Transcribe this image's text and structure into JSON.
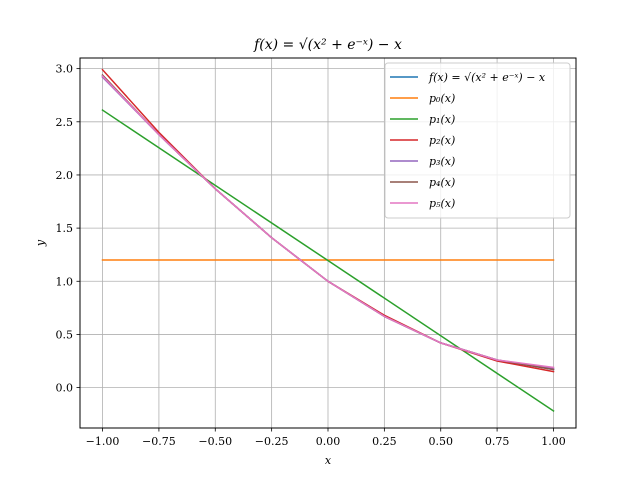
{
  "chart_data": {
    "type": "line",
    "title": "f(x) = √(x² + e⁻ˣ) − x",
    "xlabel": "x",
    "ylabel": "y",
    "xlim": [
      -1.1,
      1.1
    ],
    "ylim": [
      -0.38,
      3.1
    ],
    "xticks": [
      -1.0,
      -0.75,
      -0.5,
      -0.25,
      0.0,
      0.25,
      0.5,
      0.75,
      1.0
    ],
    "xtick_labels": [
      "−1.00",
      "−0.75",
      "−0.50",
      "−0.25",
      "0.00",
      "0.25",
      "0.50",
      "0.75",
      "1.00"
    ],
    "yticks": [
      0.0,
      0.5,
      1.0,
      1.5,
      2.0,
      2.5,
      3.0
    ],
    "ytick_labels": [
      "0.0",
      "0.5",
      "1.0",
      "1.5",
      "2.0",
      "2.5",
      "3.0"
    ],
    "grid": true,
    "legend_position": "top-right",
    "series": [
      {
        "name": "f(x) = √(x² + e⁻ˣ) − x",
        "color": "#1f77b4",
        "x": [
          -1.0,
          -0.75,
          -0.5,
          -0.25,
          0.0,
          0.25,
          0.5,
          0.75,
          1.0
        ],
        "values": [
          2.93,
          2.38,
          1.87,
          1.41,
          1.0,
          0.67,
          0.42,
          0.26,
          0.17
        ]
      },
      {
        "name": "p₀(x)",
        "color": "#ff7f0e",
        "x": [
          -1.0,
          1.0
        ],
        "values": [
          1.2,
          1.2
        ]
      },
      {
        "name": "p₁(x)",
        "color": "#2ca02c",
        "x": [
          -1.0,
          1.0
        ],
        "values": [
          2.61,
          -0.22
        ]
      },
      {
        "name": "p₂(x)",
        "color": "#d62728",
        "x": [
          -1.0,
          -0.75,
          -0.5,
          -0.25,
          0.0,
          0.25,
          0.5,
          0.75,
          1.0
        ],
        "values": [
          2.99,
          2.4,
          1.87,
          1.41,
          1.0,
          0.68,
          0.42,
          0.25,
          0.15
        ]
      },
      {
        "name": "p₃(x)",
        "color": "#9467bd",
        "x": [
          -1.0,
          -0.75,
          -0.5,
          -0.25,
          0.0,
          0.25,
          0.5,
          0.75,
          1.0
        ],
        "values": [
          2.92,
          2.38,
          1.87,
          1.41,
          1.0,
          0.67,
          0.42,
          0.26,
          0.18
        ]
      },
      {
        "name": "p₄(x)",
        "color": "#8c564b",
        "x": [
          -1.0,
          -0.75,
          -0.5,
          -0.25,
          0.0,
          0.25,
          0.5,
          0.75,
          1.0
        ],
        "values": [
          2.94,
          2.38,
          1.87,
          1.41,
          1.0,
          0.67,
          0.42,
          0.26,
          0.17
        ]
      },
      {
        "name": "p₅(x)",
        "color": "#e377c2",
        "x": [
          -1.0,
          -0.75,
          -0.5,
          -0.25,
          0.0,
          0.25,
          0.5,
          0.75,
          1.0
        ],
        "values": [
          2.93,
          2.38,
          1.87,
          1.41,
          1.0,
          0.67,
          0.42,
          0.26,
          0.19
        ]
      }
    ]
  }
}
